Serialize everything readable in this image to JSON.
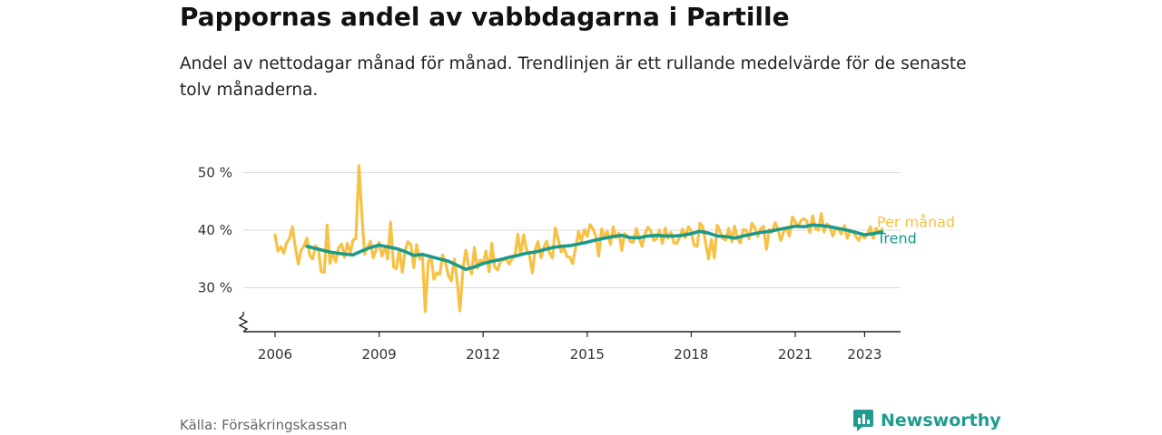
{
  "header": {
    "title": "Pappornas andel av vabbdagarna i Partille",
    "subtitle": "Andel av nettodagar månad för månad. Trendlinjen är ett rullande medelvärde för de senaste tolv månaderna."
  },
  "footer": {
    "source": "Källa: Försäkringskassan",
    "brand": "Newsworthy"
  },
  "colors": {
    "monthly": "#f7c144",
    "trend": "#1a9a8a",
    "grid": "#d9d9d9",
    "axis": "#222222",
    "brand": "#1f9c8e"
  },
  "chart_data": {
    "type": "line",
    "x_axis": {
      "ticks": [
        2006,
        2009,
        2012,
        2015,
        2018,
        2021,
        2023
      ],
      "range": [
        2005.6,
        2024.2
      ]
    },
    "y_axis": {
      "ticks": [
        30,
        40,
        50
      ],
      "tick_labels": [
        "30 %",
        "40 %",
        "50 %"
      ],
      "range": [
        22,
        52
      ],
      "broken_axis": true
    },
    "grid": "horizontal",
    "series": [
      {
        "name": "Per månad",
        "points": [
          [
            2006.0,
            39.2
          ],
          [
            2006.08,
            36.4
          ],
          [
            2006.17,
            37.1
          ],
          [
            2006.25,
            36.0
          ],
          [
            2006.33,
            37.8
          ],
          [
            2006.42,
            38.6
          ],
          [
            2006.5,
            40.6
          ],
          [
            2006.58,
            37.2
          ],
          [
            2006.67,
            34.1
          ],
          [
            2006.75,
            36.5
          ],
          [
            2006.83,
            37.2
          ],
          [
            2006.92,
            38.6
          ],
          [
            2007.0,
            35.6
          ],
          [
            2007.08,
            35.0
          ],
          [
            2007.17,
            37.3
          ],
          [
            2007.25,
            36.6
          ],
          [
            2007.33,
            32.8
          ],
          [
            2007.42,
            32.7
          ],
          [
            2007.5,
            40.9
          ],
          [
            2007.58,
            34.2
          ],
          [
            2007.67,
            36.0
          ],
          [
            2007.75,
            34.5
          ],
          [
            2007.83,
            36.9
          ],
          [
            2007.92,
            37.6
          ],
          [
            2008.0,
            35.3
          ],
          [
            2008.08,
            37.7
          ],
          [
            2008.17,
            36.1
          ],
          [
            2008.25,
            38.3
          ],
          [
            2008.33,
            38.5
          ],
          [
            2008.42,
            51.2
          ],
          [
            2008.5,
            43.0
          ],
          [
            2008.58,
            35.8
          ],
          [
            2008.67,
            37.1
          ],
          [
            2008.75,
            38.1
          ],
          [
            2008.83,
            35.2
          ],
          [
            2008.92,
            36.7
          ],
          [
            2009.0,
            37.9
          ],
          [
            2009.08,
            35.5
          ],
          [
            2009.17,
            37.1
          ],
          [
            2009.25,
            35.0
          ],
          [
            2009.33,
            41.4
          ],
          [
            2009.42,
            33.6
          ],
          [
            2009.5,
            33.3
          ],
          [
            2009.58,
            36.8
          ],
          [
            2009.67,
            32.7
          ],
          [
            2009.75,
            36.5
          ],
          [
            2009.83,
            38.0
          ],
          [
            2009.92,
            37.4
          ],
          [
            2010.0,
            33.5
          ],
          [
            2010.08,
            37.5
          ],
          [
            2010.17,
            35.0
          ],
          [
            2010.25,
            35.5
          ],
          [
            2010.33,
            25.9
          ],
          [
            2010.42,
            34.6
          ],
          [
            2010.5,
            35.2
          ],
          [
            2010.58,
            31.5
          ],
          [
            2010.67,
            32.6
          ],
          [
            2010.75,
            32.3
          ],
          [
            2010.83,
            35.7
          ],
          [
            2010.92,
            34.3
          ],
          [
            2011.0,
            32.1
          ],
          [
            2011.08,
            31.2
          ],
          [
            2011.17,
            35.0
          ],
          [
            2011.25,
            31.1
          ],
          [
            2011.33,
            26.0
          ],
          [
            2011.42,
            33.3
          ],
          [
            2011.5,
            36.5
          ],
          [
            2011.58,
            33.9
          ],
          [
            2011.67,
            32.4
          ],
          [
            2011.75,
            37.0
          ],
          [
            2011.83,
            33.4
          ],
          [
            2011.92,
            34.8
          ],
          [
            2012.0,
            34.2
          ],
          [
            2012.08,
            36.4
          ],
          [
            2012.17,
            32.8
          ],
          [
            2012.25,
            37.7
          ],
          [
            2012.33,
            33.6
          ],
          [
            2012.42,
            33.1
          ],
          [
            2012.5,
            34.6
          ],
          [
            2012.58,
            34.8
          ],
          [
            2012.67,
            35.0
          ],
          [
            2012.75,
            34.1
          ],
          [
            2012.83,
            35.0
          ],
          [
            2012.92,
            35.5
          ],
          [
            2013.0,
            39.3
          ],
          [
            2013.08,
            35.8
          ],
          [
            2013.17,
            39.2
          ],
          [
            2013.25,
            36.6
          ],
          [
            2013.33,
            35.8
          ],
          [
            2013.42,
            32.6
          ],
          [
            2013.5,
            36.6
          ],
          [
            2013.58,
            38.0
          ],
          [
            2013.67,
            35.2
          ],
          [
            2013.75,
            37.0
          ],
          [
            2013.83,
            38.1
          ],
          [
            2013.92,
            36.0
          ],
          [
            2014.0,
            35.2
          ],
          [
            2014.08,
            40.4
          ],
          [
            2014.17,
            38.3
          ],
          [
            2014.25,
            36.2
          ],
          [
            2014.33,
            37.0
          ],
          [
            2014.42,
            35.4
          ],
          [
            2014.5,
            35.3
          ],
          [
            2014.58,
            34.2
          ],
          [
            2014.67,
            37.1
          ],
          [
            2014.75,
            39.8
          ],
          [
            2014.83,
            38.1
          ],
          [
            2014.92,
            40.1
          ],
          [
            2015.0,
            38.9
          ],
          [
            2015.08,
            41.0
          ],
          [
            2015.17,
            40.2
          ],
          [
            2015.25,
            38.9
          ],
          [
            2015.33,
            35.5
          ],
          [
            2015.42,
            40.2
          ],
          [
            2015.5,
            38.8
          ],
          [
            2015.58,
            39.8
          ],
          [
            2015.67,
            37.5
          ],
          [
            2015.75,
            40.6
          ],
          [
            2015.83,
            38.7
          ],
          [
            2015.92,
            39.5
          ],
          [
            2016.0,
            36.5
          ],
          [
            2016.08,
            39.4
          ],
          [
            2016.17,
            38.9
          ],
          [
            2016.25,
            38.0
          ],
          [
            2016.33,
            37.9
          ],
          [
            2016.42,
            40.3
          ],
          [
            2016.5,
            38.6
          ],
          [
            2016.58,
            37.2
          ],
          [
            2016.67,
            39.4
          ],
          [
            2016.75,
            40.5
          ],
          [
            2016.83,
            39.9
          ],
          [
            2016.92,
            38.2
          ],
          [
            2017.0,
            38.5
          ],
          [
            2017.08,
            40.0
          ],
          [
            2017.17,
            37.7
          ],
          [
            2017.25,
            40.4
          ],
          [
            2017.33,
            38.6
          ],
          [
            2017.42,
            39.6
          ],
          [
            2017.5,
            37.8
          ],
          [
            2017.58,
            37.7
          ],
          [
            2017.67,
            38.8
          ],
          [
            2017.75,
            40.2
          ],
          [
            2017.83,
            38.7
          ],
          [
            2017.92,
            40.6
          ],
          [
            2018.0,
            39.8
          ],
          [
            2018.08,
            37.4
          ],
          [
            2018.17,
            37.2
          ],
          [
            2018.25,
            41.2
          ],
          [
            2018.33,
            40.7
          ],
          [
            2018.42,
            37.7
          ],
          [
            2018.5,
            35.0
          ],
          [
            2018.58,
            38.4
          ],
          [
            2018.67,
            35.2
          ],
          [
            2018.75,
            40.9
          ],
          [
            2018.83,
            39.8
          ],
          [
            2018.92,
            38.5
          ],
          [
            2019.0,
            38.3
          ],
          [
            2019.08,
            40.3
          ],
          [
            2019.17,
            38.0
          ],
          [
            2019.25,
            40.7
          ],
          [
            2019.33,
            38.6
          ],
          [
            2019.42,
            37.8
          ],
          [
            2019.5,
            40.1
          ],
          [
            2019.58,
            40.0
          ],
          [
            2019.67,
            38.5
          ],
          [
            2019.75,
            41.2
          ],
          [
            2019.83,
            40.5
          ],
          [
            2019.92,
            38.9
          ],
          [
            2020.0,
            40.2
          ],
          [
            2020.08,
            40.7
          ],
          [
            2020.17,
            36.7
          ],
          [
            2020.25,
            40.1
          ],
          [
            2020.33,
            39.6
          ],
          [
            2020.42,
            41.3
          ],
          [
            2020.5,
            40.2
          ],
          [
            2020.58,
            38.2
          ],
          [
            2020.67,
            39.8
          ],
          [
            2020.75,
            40.5
          ],
          [
            2020.83,
            39.0
          ],
          [
            2020.92,
            42.3
          ],
          [
            2021.0,
            41.4
          ],
          [
            2021.08,
            40.6
          ],
          [
            2021.17,
            41.7
          ],
          [
            2021.25,
            42.0
          ],
          [
            2021.33,
            41.6
          ],
          [
            2021.42,
            39.6
          ],
          [
            2021.5,
            42.5
          ],
          [
            2021.58,
            40.3
          ],
          [
            2021.67,
            40.0
          ],
          [
            2021.75,
            42.9
          ],
          [
            2021.83,
            39.7
          ],
          [
            2021.92,
            41.1
          ],
          [
            2022.0,
            40.6
          ],
          [
            2022.08,
            39.0
          ],
          [
            2022.17,
            40.4
          ],
          [
            2022.25,
            40.1
          ],
          [
            2022.33,
            39.3
          ],
          [
            2022.42,
            40.8
          ],
          [
            2022.5,
            38.6
          ],
          [
            2022.58,
            40.0
          ],
          [
            2022.67,
            39.7
          ],
          [
            2022.75,
            38.9
          ],
          [
            2022.83,
            38.2
          ],
          [
            2022.92,
            39.4
          ],
          [
            2023.0,
            38.6
          ],
          [
            2023.08,
            39.3
          ],
          [
            2023.17,
            40.6
          ],
          [
            2023.25,
            38.6
          ],
          [
            2023.33,
            40.3
          ],
          [
            2023.42,
            39.6
          ],
          [
            2023.5,
            40.2
          ]
        ]
      },
      {
        "name": "Trend",
        "points": [
          [
            2006.92,
            37.2
          ],
          [
            2007.25,
            36.7
          ],
          [
            2007.58,
            36.2
          ],
          [
            2007.92,
            35.9
          ],
          [
            2008.25,
            35.7
          ],
          [
            2008.5,
            36.4
          ],
          [
            2008.75,
            37.0
          ],
          [
            2009.0,
            37.4
          ],
          [
            2009.25,
            37.1
          ],
          [
            2009.5,
            36.8
          ],
          [
            2009.75,
            36.3
          ],
          [
            2010.0,
            35.6
          ],
          [
            2010.25,
            35.8
          ],
          [
            2010.5,
            35.4
          ],
          [
            2010.75,
            35.0
          ],
          [
            2011.0,
            34.6
          ],
          [
            2011.25,
            33.9
          ],
          [
            2011.5,
            33.2
          ],
          [
            2011.75,
            33.6
          ],
          [
            2012.0,
            34.2
          ],
          [
            2012.25,
            34.6
          ],
          [
            2012.5,
            34.9
          ],
          [
            2012.75,
            35.3
          ],
          [
            2013.0,
            35.6
          ],
          [
            2013.25,
            36.0
          ],
          [
            2013.5,
            36.2
          ],
          [
            2013.75,
            36.6
          ],
          [
            2014.0,
            37.0
          ],
          [
            2014.25,
            37.2
          ],
          [
            2014.5,
            37.3
          ],
          [
            2014.75,
            37.6
          ],
          [
            2015.0,
            37.9
          ],
          [
            2015.25,
            38.3
          ],
          [
            2015.5,
            38.6
          ],
          [
            2015.75,
            38.9
          ],
          [
            2016.0,
            39.1
          ],
          [
            2016.25,
            38.7
          ],
          [
            2016.5,
            38.7
          ],
          [
            2016.75,
            39.0
          ],
          [
            2017.0,
            39.1
          ],
          [
            2017.25,
            39.0
          ],
          [
            2017.5,
            39.0
          ],
          [
            2017.75,
            39.1
          ],
          [
            2018.0,
            39.4
          ],
          [
            2018.25,
            39.8
          ],
          [
            2018.5,
            39.5
          ],
          [
            2018.75,
            39.0
          ],
          [
            2019.0,
            38.9
          ],
          [
            2019.25,
            38.6
          ],
          [
            2019.5,
            39.0
          ],
          [
            2019.75,
            39.3
          ],
          [
            2020.0,
            39.6
          ],
          [
            2020.25,
            39.8
          ],
          [
            2020.5,
            40.1
          ],
          [
            2020.75,
            40.4
          ],
          [
            2021.0,
            40.7
          ],
          [
            2021.25,
            40.6
          ],
          [
            2021.5,
            40.9
          ],
          [
            2021.75,
            40.8
          ],
          [
            2022.0,
            40.6
          ],
          [
            2022.25,
            40.3
          ],
          [
            2022.5,
            40.0
          ],
          [
            2022.75,
            39.6
          ],
          [
            2023.0,
            39.2
          ],
          [
            2023.25,
            39.4
          ],
          [
            2023.5,
            39.7
          ]
        ]
      }
    ]
  }
}
